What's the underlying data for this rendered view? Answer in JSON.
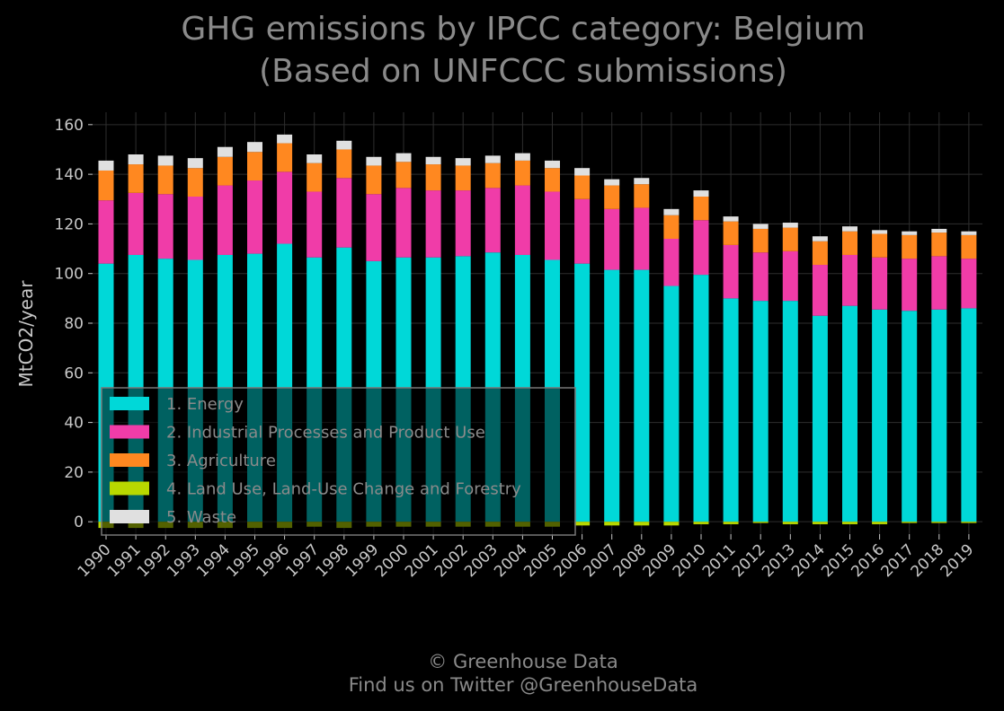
{
  "page": {
    "title_line1": "GHG emissions by IPCC category: Belgium",
    "title_line2": "(Based on UNFCCC submissions)",
    "footer_line1": "© Greenhouse Data",
    "footer_line2": "Find us on Twitter @GreenhouseData"
  },
  "colors": {
    "background": "#000000",
    "grid": "#2e2e2e",
    "text": "#c8c8c8",
    "title": "#8a8a8a"
  },
  "chart_data": {
    "type": "bar",
    "stacked": true,
    "title": "GHG emissions by IPCC category: Belgium\n(Based on UNFCCC submissions)",
    "xlabel": "",
    "ylabel": "MtCO2/year",
    "ylim": [
      -5,
      165
    ],
    "yticks": [
      0,
      20,
      40,
      60,
      80,
      100,
      120,
      140,
      160
    ],
    "grid": true,
    "legend_position": "lower-left",
    "categories": [
      "1990",
      "1991",
      "1992",
      "1993",
      "1994",
      "1995",
      "1996",
      "1997",
      "1998",
      "1999",
      "2000",
      "2001",
      "2002",
      "2003",
      "2004",
      "2005",
      "2006",
      "2007",
      "2008",
      "2009",
      "2010",
      "2011",
      "2012",
      "2013",
      "2014",
      "2015",
      "2016",
      "2017",
      "2018",
      "2019"
    ],
    "series": [
      {
        "name": "1. Energy",
        "color": "#00d8d8",
        "values": [
          104,
          107.5,
          106,
          105.5,
          107.5,
          108,
          112,
          106.5,
          110.5,
          105,
          106.5,
          106.5,
          107,
          108.5,
          107.5,
          105.5,
          104,
          101.5,
          101.5,
          95,
          99.5,
          90,
          89,
          89,
          83,
          87,
          85.5,
          85,
          85.5,
          86
        ]
      },
      {
        "name": "2. Industrial Processes and Product Use",
        "color": "#f03ca8",
        "values": [
          25.5,
          25,
          26,
          25.5,
          28,
          29.5,
          29,
          26.5,
          28,
          27,
          28,
          27,
          26.5,
          26,
          28,
          27.5,
          26,
          24.5,
          25,
          19,
          22,
          21.5,
          19.5,
          20,
          20.5,
          20.5,
          21,
          21,
          21.5,
          20
        ]
      },
      {
        "name": "3. Agriculture",
        "color": "#ff8820",
        "values": [
          12,
          11.5,
          11.5,
          11.5,
          11.5,
          11.5,
          11.5,
          11.5,
          11.5,
          11.5,
          10.5,
          10.5,
          10,
          10,
          10,
          9.5,
          9.5,
          9.5,
          9.5,
          9.5,
          9.5,
          9.5,
          9.5,
          9.5,
          9.5,
          9.5,
          9.5,
          9.5,
          9.5,
          9.5
        ]
      },
      {
        "name": "4. Land Use, Land-Use Change and Forestry",
        "color": "#b8d800",
        "values": [
          -2.5,
          -2.5,
          -2.5,
          -2.5,
          -2.5,
          -2.5,
          -2.5,
          -2,
          -2.5,
          -2,
          -2,
          -2,
          -2,
          -2,
          -2,
          -2,
          -1.5,
          -1.5,
          -1.5,
          -1.5,
          -1,
          -1,
          -0.5,
          -1,
          -1,
          -1,
          -1,
          -0.5,
          -0.5,
          -0.5
        ]
      },
      {
        "name": "5. Waste",
        "color": "#e0e0e0",
        "values": [
          4,
          4,
          4,
          4,
          4,
          4,
          3.5,
          3.5,
          3.5,
          3.5,
          3.5,
          3,
          3,
          3,
          3,
          3,
          3,
          2.5,
          2.5,
          2.5,
          2.5,
          2,
          2,
          2,
          2,
          2,
          1.5,
          1.5,
          1.5,
          1.5
        ]
      }
    ]
  }
}
